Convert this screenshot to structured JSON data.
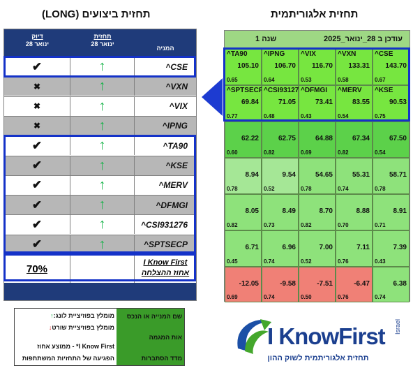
{
  "titles": {
    "left": "תחזית ביצועים (LONG)",
    "right": "תחזית אלגוריתמית"
  },
  "left_table": {
    "headers": {
      "accuracy": "דיוק",
      "accuracy_date": "28 ינואר",
      "forecast": "תחזית",
      "forecast_date": "28 ינואר",
      "stock": "המניה"
    },
    "rows": [
      {
        "name": "^CSE",
        "mark": "✔",
        "arrow": "↑"
      },
      {
        "name": "^VXN",
        "mark": "✖",
        "arrow": "↑"
      },
      {
        "name": "^VIX",
        "mark": "✖",
        "arrow": "↑"
      },
      {
        "name": "^IPNG",
        "mark": "✖",
        "arrow": "↑"
      },
      {
        "name": "^TA90",
        "mark": "✔",
        "arrow": "↑"
      },
      {
        "name": "^KSE",
        "mark": "✔",
        "arrow": "↑"
      },
      {
        "name": "^MERV",
        "mark": "✔",
        "arrow": "↑"
      },
      {
        "name": "^DFMGI",
        "mark": "✔",
        "arrow": "↑"
      },
      {
        "name": "^CSI931276",
        "mark": "✔",
        "arrow": "↑"
      },
      {
        "name": "^SPTSECP",
        "mark": "✔",
        "arrow": "↑"
      }
    ],
    "accuracy_value": "70%",
    "accuracy_label_1": "I Know First",
    "accuracy_label_2": "אחוז ההצלחה"
  },
  "right_grid": {
    "header_updated": "עודכן ב 28_ינואר_2025",
    "header_horizon": "1 שנה",
    "rows": [
      [
        {
          "tk": "^TA90",
          "sg": "105.10",
          "pr": "0.65"
        },
        {
          "tk": "^IPNG",
          "sg": "106.70",
          "pr": "0.64"
        },
        {
          "tk": "^VIX",
          "sg": "116.70",
          "pr": "0.53"
        },
        {
          "tk": "^VXN",
          "sg": "133.31",
          "pr": "0.58"
        },
        {
          "tk": "^CSE",
          "sg": "143.70",
          "pr": "0.67"
        }
      ],
      [
        {
          "tk": "^SPTSECP",
          "sg": "69.84",
          "pr": "0.77"
        },
        {
          "tk": "^CSI931276",
          "sg": "71.05",
          "pr": "0.48"
        },
        {
          "tk": "^DFMGI",
          "sg": "73.41",
          "pr": "0.43"
        },
        {
          "tk": "^MERV",
          "sg": "83.55",
          "pr": "0.54"
        },
        {
          "tk": "^KSE",
          "sg": "90.53",
          "pr": "0.75"
        }
      ],
      [
        {
          "tk": "",
          "sg": "62.22",
          "pr": "0.60"
        },
        {
          "tk": "",
          "sg": "62.75",
          "pr": "0.82"
        },
        {
          "tk": "",
          "sg": "64.88",
          "pr": "0.69"
        },
        {
          "tk": "",
          "sg": "67.34",
          "pr": "0.82"
        },
        {
          "tk": "",
          "sg": "67.50",
          "pr": "0.54"
        }
      ],
      [
        {
          "tk": "",
          "sg": "8.94",
          "pr": "0.78"
        },
        {
          "tk": "",
          "sg": "9.54",
          "pr": "0.52"
        },
        {
          "tk": "",
          "sg": "54.65",
          "pr": "0.78"
        },
        {
          "tk": "",
          "sg": "55.31",
          "pr": "0.74"
        },
        {
          "tk": "",
          "sg": "58.71",
          "pr": "0.78"
        }
      ],
      [
        {
          "tk": "",
          "sg": "8.05",
          "pr": "0.82"
        },
        {
          "tk": "",
          "sg": "8.49",
          "pr": "0.73"
        },
        {
          "tk": "",
          "sg": "8.70",
          "pr": "0.82"
        },
        {
          "tk": "",
          "sg": "8.88",
          "pr": "0.70"
        },
        {
          "tk": "",
          "sg": "8.91",
          "pr": "0.71"
        }
      ],
      [
        {
          "tk": "",
          "sg": "6.71",
          "pr": "0.45"
        },
        {
          "tk": "",
          "sg": "6.96",
          "pr": "0.74"
        },
        {
          "tk": "",
          "sg": "7.00",
          "pr": "0.52"
        },
        {
          "tk": "",
          "sg": "7.11",
          "pr": "0.76"
        },
        {
          "tk": "",
          "sg": "7.39",
          "pr": "0.43"
        }
      ],
      [
        {
          "tk": "",
          "sg": "-12.05",
          "pr": "0.69"
        },
        {
          "tk": "",
          "sg": "-9.58",
          "pr": "0.74"
        },
        {
          "tk": "",
          "sg": "-7.51",
          "pr": "0.50"
        },
        {
          "tk": "",
          "sg": "-6.47",
          "pr": "0.76"
        },
        {
          "tk": "",
          "sg": "6.38",
          "pr": "0.74"
        }
      ]
    ],
    "colors": {
      "bright_green": "#77e640",
      "green": "#5cd14a",
      "light_green": "#8ee27b",
      "pale_green": "#a5e796",
      "red": "#f08076"
    }
  },
  "legend": {
    "long": "מומלץ בפוזיציית לונג:",
    "long_arrow": "↑",
    "short": "מומלץ בפוזיציית שורט",
    "short_arrow": "↓",
    "accuracy_note_1": "I Know First* - ממוצע אחוז",
    "accuracy_note_2": "הפגיעה של התחזיות המשתתפות",
    "green_1": "שם המנייה או הנכס",
    "green_2": "אות המגמה",
    "green_3": "מדד הסתברות"
  },
  "logo": {
    "brand": "I KnowFirst",
    "country": "Israel",
    "tagline": "תחזית אלגוריתמית לשוק ההון"
  }
}
